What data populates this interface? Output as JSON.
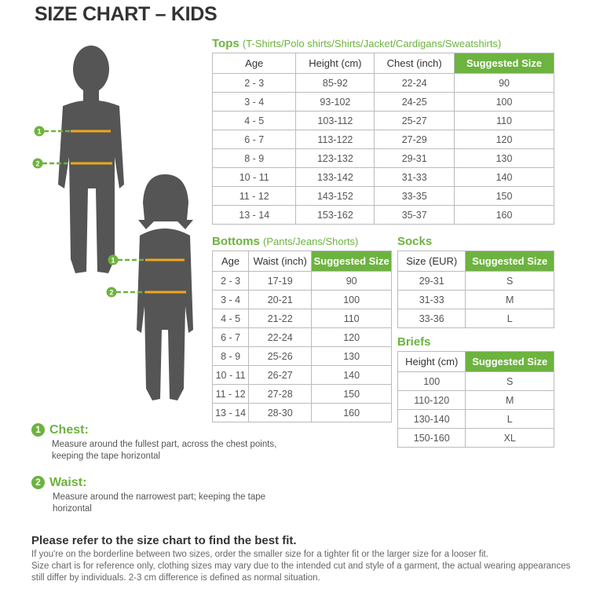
{
  "title": "SIZE CHART – KIDS",
  "colors": {
    "accent": "#6db33f",
    "tape": "#f0a71c",
    "silhouette": "#555555"
  },
  "tops": {
    "heading": "Tops",
    "subheading": "(T-Shirts/Polo shirts/Shirts/Jacket/Cardigans/Sweatshirts)",
    "columns": [
      "Age",
      "Height (cm)",
      "Chest (inch)",
      "Suggested Size"
    ],
    "rows": [
      [
        "2 - 3",
        "85-92",
        "22-24",
        "90"
      ],
      [
        "3 - 4",
        "93-102",
        "24-25",
        "100"
      ],
      [
        "4 - 5",
        "103-112",
        "25-27",
        "110"
      ],
      [
        "6 - 7",
        "113-122",
        "27-29",
        "120"
      ],
      [
        "8 - 9",
        "123-132",
        "29-31",
        "130"
      ],
      [
        "10 - 11",
        "133-142",
        "31-33",
        "140"
      ],
      [
        "11 - 12",
        "143-152",
        "33-35",
        "150"
      ],
      [
        "13 - 14",
        "153-162",
        "35-37",
        "160"
      ]
    ]
  },
  "bottoms": {
    "heading": "Bottoms",
    "subheading": "(Pants/Jeans/Shorts)",
    "columns": [
      "Age",
      "Waist (inch)",
      "Suggested Size"
    ],
    "rows": [
      [
        "2 - 3",
        "17-19",
        "90"
      ],
      [
        "3 - 4",
        "20-21",
        "100"
      ],
      [
        "4 - 5",
        "21-22",
        "110"
      ],
      [
        "6 - 7",
        "22-24",
        "120"
      ],
      [
        "8 - 9",
        "25-26",
        "130"
      ],
      [
        "10 - 11",
        "26-27",
        "140"
      ],
      [
        "11 - 12",
        "27-28",
        "150"
      ],
      [
        "13 - 14",
        "28-30",
        "160"
      ]
    ]
  },
  "socks": {
    "heading": "Socks",
    "columns": [
      "Size (EUR)",
      "Suggested Size"
    ],
    "rows": [
      [
        "29-31",
        "S"
      ],
      [
        "31-33",
        "M"
      ],
      [
        "33-36",
        "L"
      ]
    ]
  },
  "briefs": {
    "heading": "Briefs",
    "columns": [
      "Height (cm)",
      "Suggested Size"
    ],
    "rows": [
      [
        "100",
        "S"
      ],
      [
        "110-120",
        "M"
      ],
      [
        "130-140",
        "L"
      ],
      [
        "150-160",
        "XL"
      ]
    ]
  },
  "figure_markers": [
    "1",
    "2"
  ],
  "measures": [
    {
      "number": "1",
      "label": "Chest:",
      "text": "Measure around the fullest part, across the chest points, keeping the tape horizontal"
    },
    {
      "number": "2",
      "label": "Waist:",
      "text": "Measure around the narrowest part; keeping the tape horizontal"
    }
  ],
  "fit": {
    "heading": "Please refer to the size chart to find the best fit.",
    "line1": "If you're on the borderline between two sizes, order the smaller size for a tighter fit or the larger size for a looser fit.",
    "line2": "Size chart is for reference only, clothing sizes may vary due to the intended cut and style of a garment, the actual wearing appearances still differ by individuals. 2-3 cm difference is defined as normal situation."
  }
}
